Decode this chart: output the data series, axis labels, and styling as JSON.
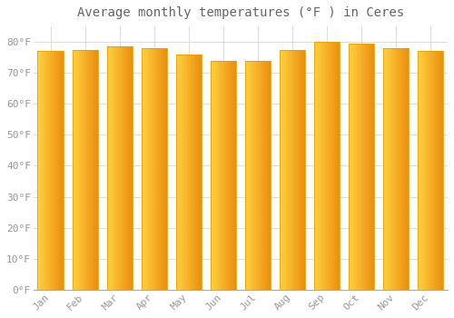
{
  "title": "Average monthly temperatures (°F ) in Ceres",
  "months": [
    "Jan",
    "Feb",
    "Mar",
    "Apr",
    "May",
    "Jun",
    "Jul",
    "Aug",
    "Sep",
    "Oct",
    "Nov",
    "Dec"
  ],
  "values": [
    77.0,
    77.5,
    78.5,
    78.0,
    76.0,
    74.0,
    74.0,
    77.5,
    80.0,
    79.5,
    78.0,
    77.0
  ],
  "bar_color_left": "#FFD060",
  "bar_color_right": "#F09000",
  "bar_edge_color": "#E8A000",
  "background_color": "#FFFFFF",
  "grid_color": "#DDDDDD",
  "text_color": "#999999",
  "title_color": "#666666",
  "ylim": [
    0,
    85
  ],
  "yticks": [
    0,
    10,
    20,
    30,
    40,
    50,
    60,
    70,
    80
  ],
  "title_fontsize": 10,
  "tick_fontsize": 8,
  "bar_width": 0.75
}
